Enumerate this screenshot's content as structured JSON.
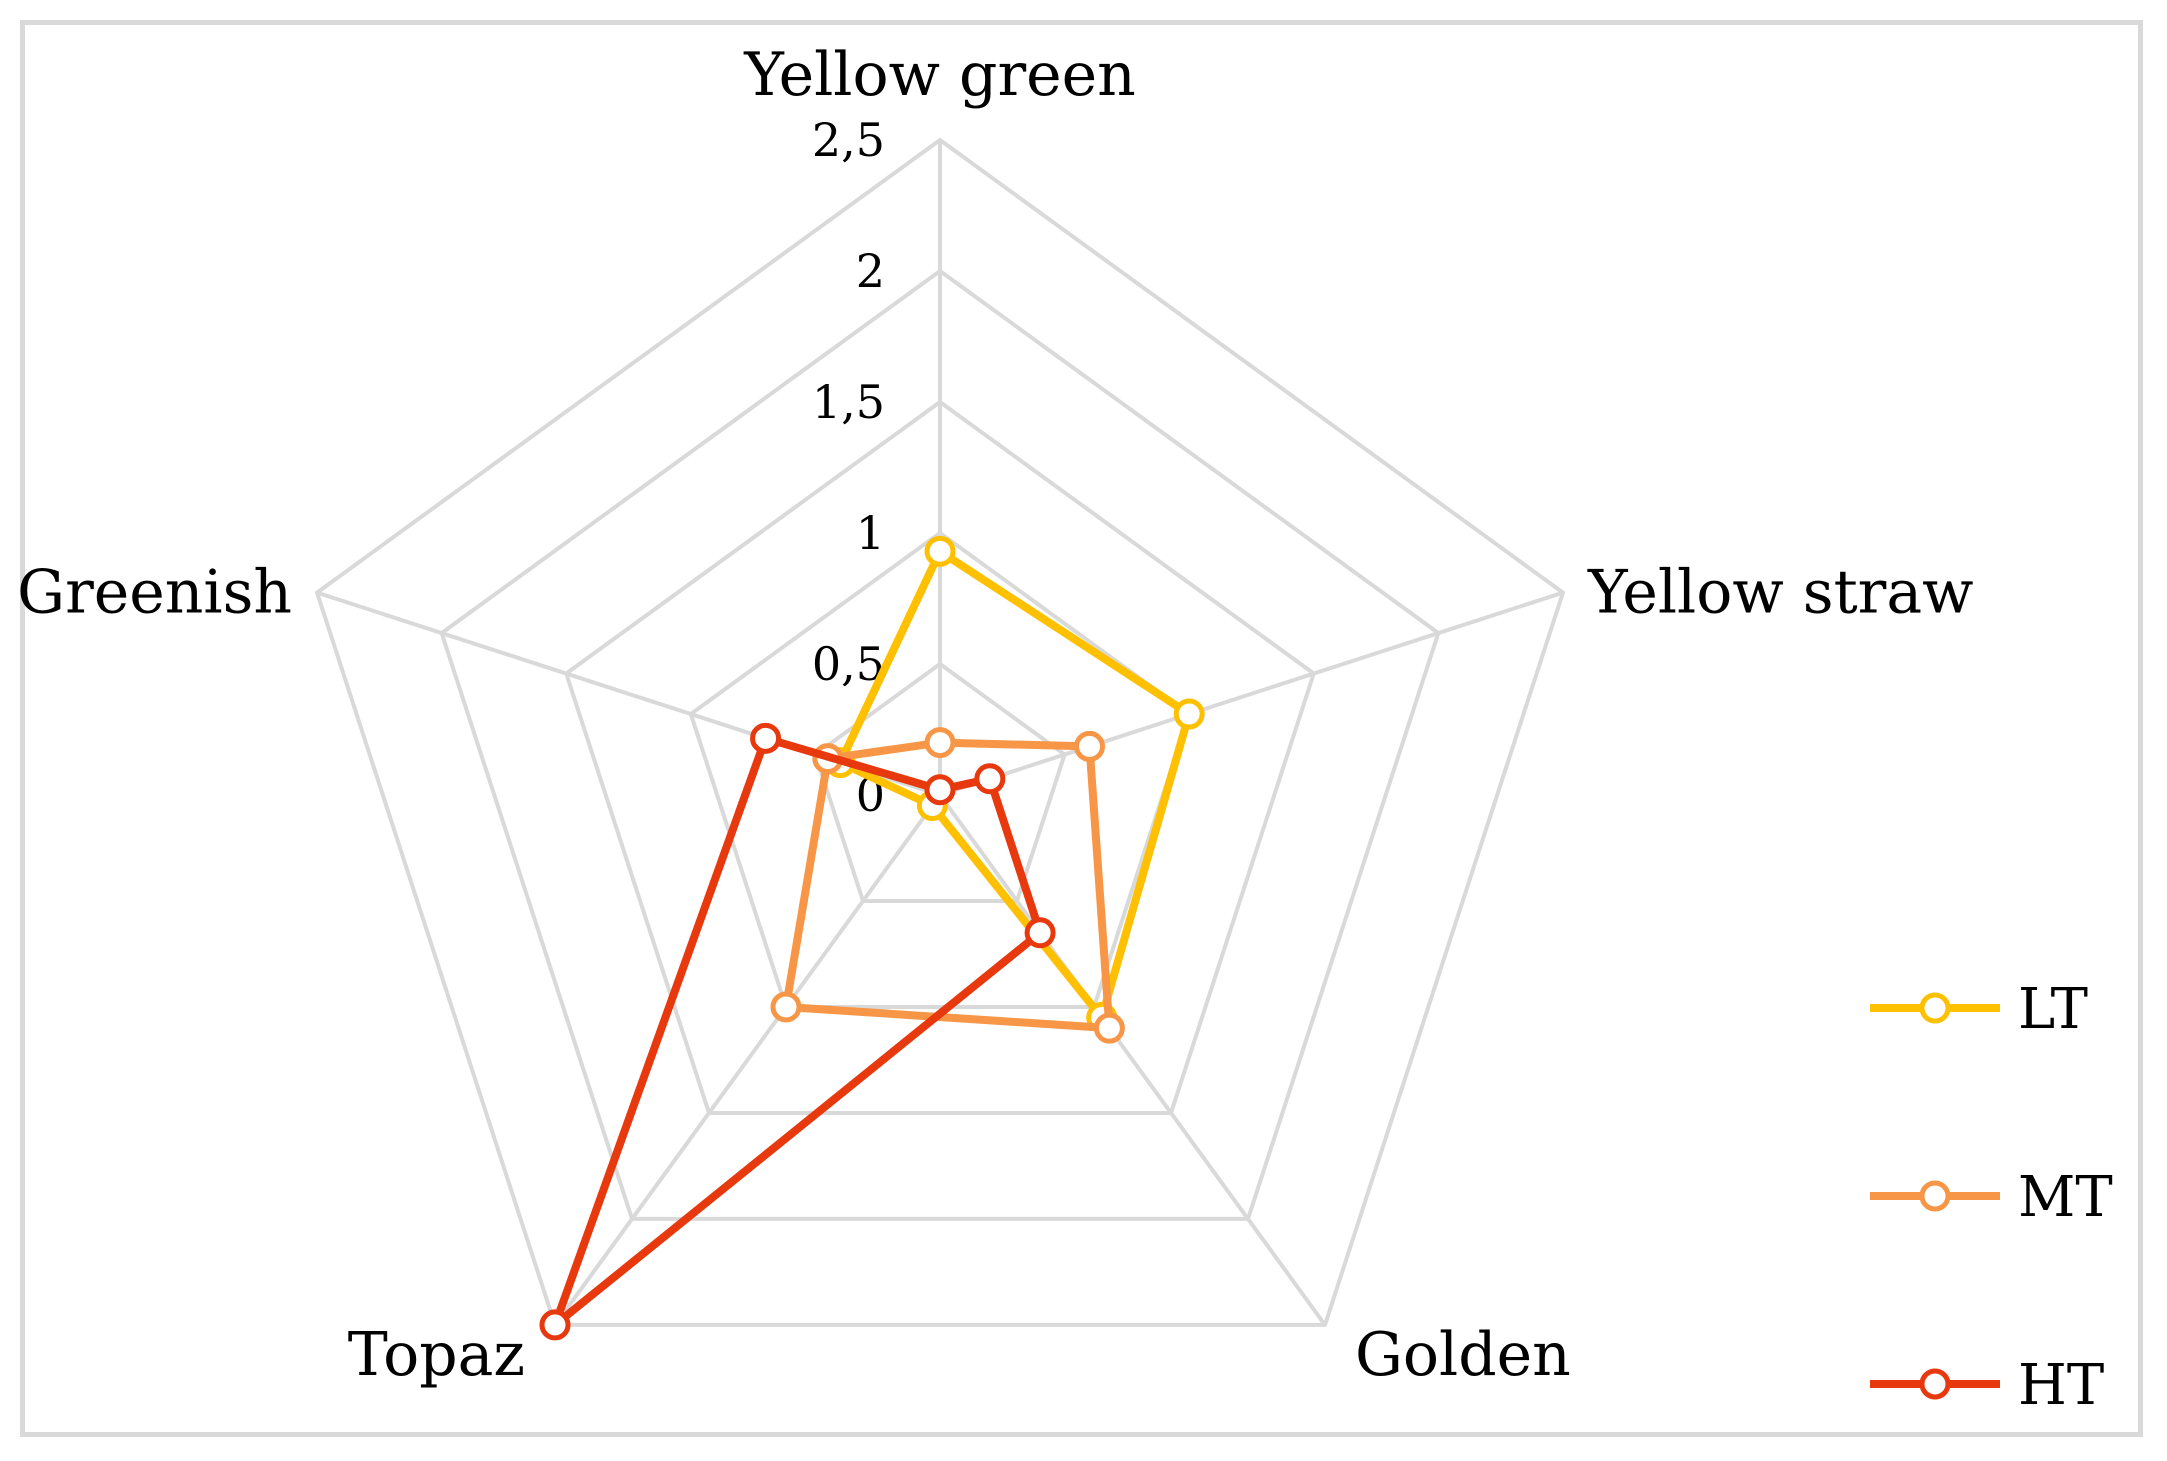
{
  "chart_data": {
    "type": "radar",
    "categories": [
      "Yellow green",
      "Yellow straw",
      "Golden",
      "Topaz",
      "Greenish"
    ],
    "r_ticks": [
      "0",
      "0,5",
      "1",
      "1,5",
      "2",
      "2,5"
    ],
    "r_tick_values": [
      0,
      0.5,
      1,
      1.5,
      2,
      2.5
    ],
    "rlim": [
      0,
      2.5
    ],
    "grid": true,
    "legend_position": "right",
    "series": [
      {
        "name": "LT",
        "color": "#ffc000",
        "values": [
          0.93,
          1.0,
          1.05,
          0.05,
          0.4
        ]
      },
      {
        "name": "MT",
        "color": "#f79646",
        "values": [
          0.2,
          0.6,
          1.1,
          1.0,
          0.45
        ]
      },
      {
        "name": "HT",
        "color": "#e8380d",
        "values": [
          0.02,
          0.2,
          0.65,
          2.5,
          0.7
        ]
      }
    ]
  }
}
